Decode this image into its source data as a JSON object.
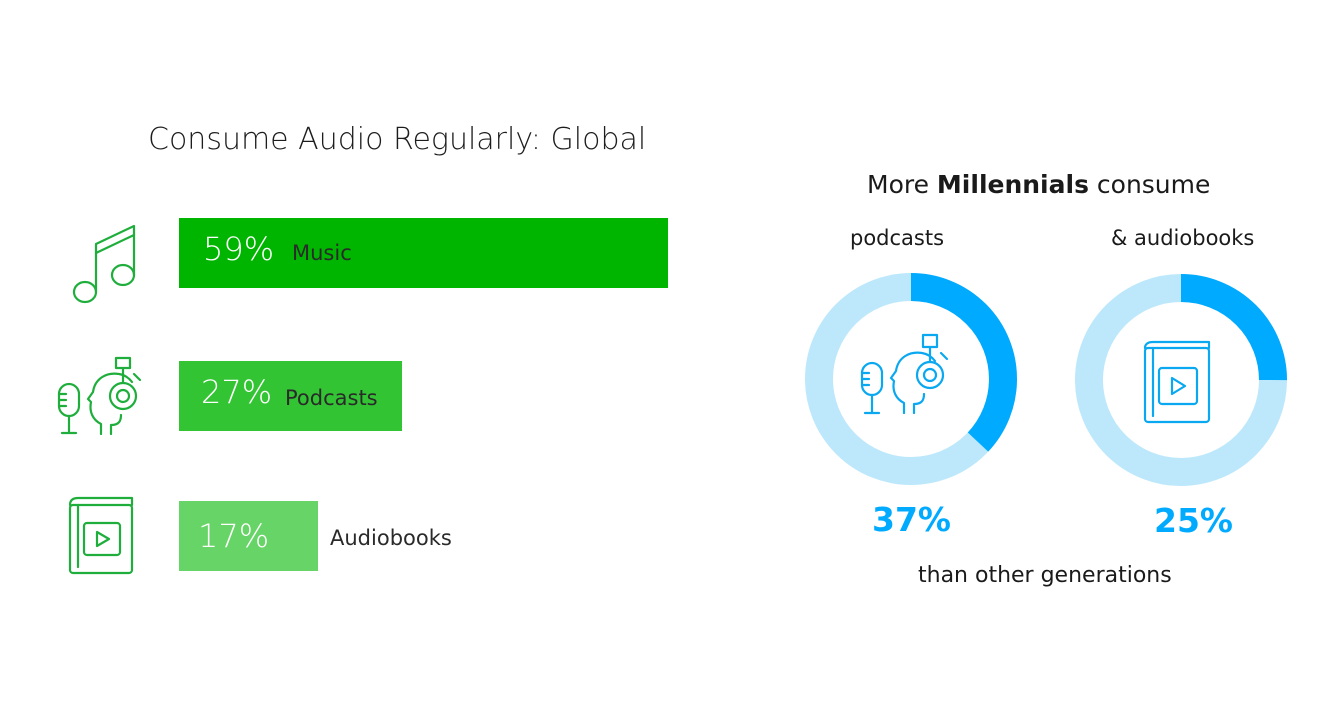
{
  "left_chart": {
    "title": "Consume Audio Regularly: Global"
  },
  "right_panel": {
    "headline_prefix": "More ",
    "headline_bold": "Millennials",
    "headline_suffix": " consume",
    "footnote": "than other generations"
  },
  "colors": {
    "music": "#00b500",
    "podcasts": "#33c433",
    "audiobooks": "#66d466",
    "donut_fill": "#00aaff",
    "donut_track": "#bde8fb",
    "icon_left": "#1fae3c",
    "icon_right": "#0aa8f0"
  },
  "chart_data": [
    {
      "type": "bar",
      "title": "Consume Audio Regularly: Global",
      "categories": [
        "Music",
        "Podcasts",
        "Audiobooks"
      ],
      "values": [
        59,
        27,
        17
      ],
      "value_labels": [
        "59%",
        "27%",
        "17%"
      ],
      "icons": [
        "music-note-icon",
        "podcast-listener-icon",
        "audiobook-icon"
      ],
      "xlim": [
        0,
        59
      ]
    },
    {
      "type": "pie",
      "categories": [
        "podcasts",
        "& audiobooks"
      ],
      "values": [
        37,
        25
      ],
      "value_labels": [
        "37%",
        "25%"
      ],
      "icons": [
        "podcast-listener-icon",
        "audiobook-icon"
      ]
    }
  ]
}
